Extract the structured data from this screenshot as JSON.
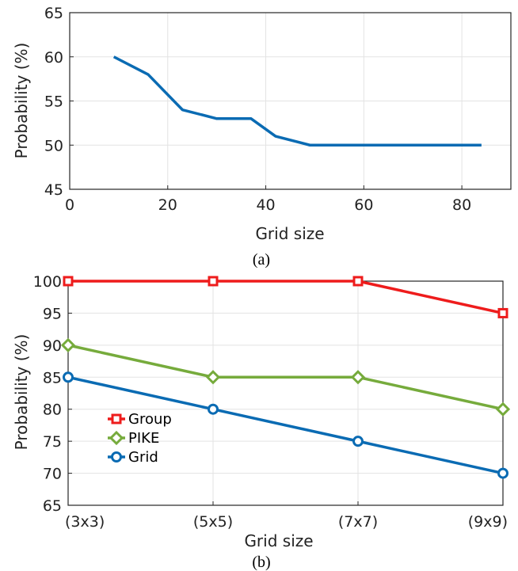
{
  "chart_data": [
    {
      "type": "line",
      "caption": "(a)",
      "xlabel": "Grid size",
      "ylabel": "Probability (%)",
      "xlim": [
        0,
        90
      ],
      "ylim": [
        45,
        65
      ],
      "xticks": [
        0,
        20,
        40,
        60,
        80
      ],
      "yticks": [
        45,
        50,
        55,
        60,
        65
      ],
      "grid": true,
      "series": [
        {
          "color": "#0a6bb3",
          "x": [
            9,
            16,
            23,
            30,
            37,
            42,
            49,
            84
          ],
          "values": [
            60,
            58,
            54,
            53,
            53,
            51,
            50,
            50
          ]
        }
      ]
    },
    {
      "type": "line",
      "caption": "(b)",
      "xlabel": "Grid size",
      "ylabel": "Probability (%)",
      "categories": [
        "(3x3)",
        "(5x5)",
        "(7x7)",
        "(9x9)"
      ],
      "ylim": [
        65,
        100
      ],
      "yticks": [
        65,
        70,
        75,
        80,
        85,
        90,
        95,
        100
      ],
      "grid": true,
      "legend_position": "left-middle",
      "series": [
        {
          "name": "Group",
          "color": "#ee1c1c",
          "marker": "square",
          "values": [
            100,
            100,
            100,
            95
          ]
        },
        {
          "name": "PIKE",
          "color": "#76ab3c",
          "marker": "diamond",
          "values": [
            90,
            85,
            85,
            80
          ]
        },
        {
          "name": "Grid",
          "color": "#0a6bb3",
          "marker": "circle",
          "values": [
            85,
            80,
            75,
            70
          ]
        }
      ]
    }
  ]
}
